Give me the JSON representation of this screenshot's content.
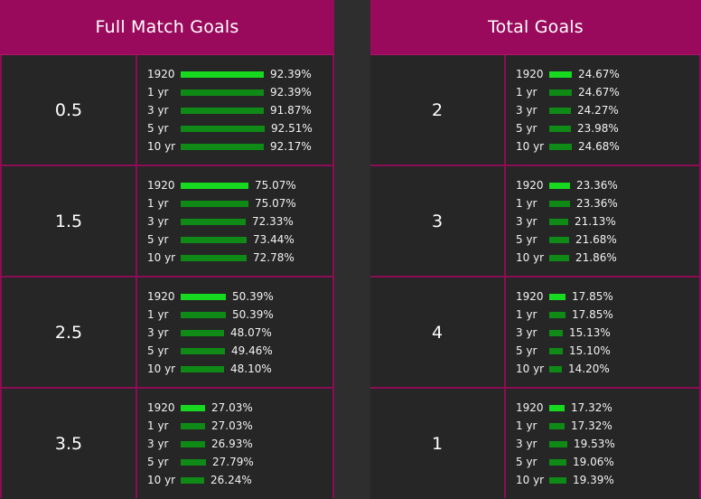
{
  "panels": [
    {
      "title": "Full Match Goals",
      "rows": [
        {
          "label": "0.5",
          "stats": [
            {
              "period": "1920",
              "value": "92.39%",
              "fraction": 0.9239
            },
            {
              "period": "1 yr",
              "value": "92.39%",
              "fraction": 0.9239
            },
            {
              "period": "3 yr",
              "value": "91.87%",
              "fraction": 0.9187
            },
            {
              "period": "5 yr",
              "value": "92.51%",
              "fraction": 0.9251
            },
            {
              "period": "10 yr",
              "value": "92.17%",
              "fraction": 0.9217
            }
          ]
        },
        {
          "label": "1.5",
          "stats": [
            {
              "period": "1920",
              "value": "75.07%",
              "fraction": 0.7507
            },
            {
              "period": "1 yr",
              "value": "75.07%",
              "fraction": 0.7507
            },
            {
              "period": "3 yr",
              "value": "72.33%",
              "fraction": 0.7233
            },
            {
              "period": "5 yr",
              "value": "73.44%",
              "fraction": 0.7344
            },
            {
              "period": "10 yr",
              "value": "72.78%",
              "fraction": 0.7278
            }
          ]
        },
        {
          "label": "2.5",
          "stats": [
            {
              "period": "1920",
              "value": "50.39%",
              "fraction": 0.5039
            },
            {
              "period": "1 yr",
              "value": "50.39%",
              "fraction": 0.5039
            },
            {
              "period": "3 yr",
              "value": "48.07%",
              "fraction": 0.4807
            },
            {
              "period": "5 yr",
              "value": "49.46%",
              "fraction": 0.4946
            },
            {
              "period": "10 yr",
              "value": "48.10%",
              "fraction": 0.481
            }
          ]
        },
        {
          "label": "3.5",
          "stats": [
            {
              "period": "1920",
              "value": "27.03%",
              "fraction": 0.2703
            },
            {
              "period": "1 yr",
              "value": "27.03%",
              "fraction": 0.2703
            },
            {
              "period": "3 yr",
              "value": "26.93%",
              "fraction": 0.2693
            },
            {
              "period": "5 yr",
              "value": "27.79%",
              "fraction": 0.2779
            },
            {
              "period": "10 yr",
              "value": "26.24%",
              "fraction": 0.2624
            }
          ]
        }
      ]
    },
    {
      "title": "Total Goals",
      "rows": [
        {
          "label": "2",
          "stats": [
            {
              "period": "1920",
              "value": "24.67%",
              "fraction": 0.2467
            },
            {
              "period": "1 yr",
              "value": "24.67%",
              "fraction": 0.2467
            },
            {
              "period": "3 yr",
              "value": "24.27%",
              "fraction": 0.2427
            },
            {
              "period": "5 yr",
              "value": "23.98%",
              "fraction": 0.2398
            },
            {
              "period": "10 yr",
              "value": "24.68%",
              "fraction": 0.2468
            }
          ]
        },
        {
          "label": "3",
          "stats": [
            {
              "period": "1920",
              "value": "23.36%",
              "fraction": 0.2336
            },
            {
              "period": "1 yr",
              "value": "23.36%",
              "fraction": 0.2336
            },
            {
              "period": "3 yr",
              "value": "21.13%",
              "fraction": 0.2113
            },
            {
              "period": "5 yr",
              "value": "21.68%",
              "fraction": 0.2168
            },
            {
              "period": "10 yr",
              "value": "21.86%",
              "fraction": 0.2186
            }
          ]
        },
        {
          "label": "4",
          "stats": [
            {
              "period": "1920",
              "value": "17.85%",
              "fraction": 0.1785
            },
            {
              "period": "1 yr",
              "value": "17.85%",
              "fraction": 0.1785
            },
            {
              "period": "3 yr",
              "value": "15.13%",
              "fraction": 0.1513
            },
            {
              "period": "5 yr",
              "value": "15.10%",
              "fraction": 0.151
            },
            {
              "period": "10 yr",
              "value": "14.20%",
              "fraction": 0.142
            }
          ]
        },
        {
          "label": "1",
          "stats": [
            {
              "period": "1920",
              "value": "17.32%",
              "fraction": 0.1732
            },
            {
              "period": "1 yr",
              "value": "17.32%",
              "fraction": 0.1732
            },
            {
              "period": "3 yr",
              "value": "19.53%",
              "fraction": 0.1953
            },
            {
              "period": "5 yr",
              "value": "19.06%",
              "fraction": 0.1906
            },
            {
              "period": "10 yr",
              "value": "19.39%",
              "fraction": 0.1939
            }
          ]
        }
      ]
    }
  ],
  "colors": {
    "header_bg": "#9a0a5c",
    "border": "#8c0c56",
    "bar_highlight": "#17d91f",
    "bar_default": "#0f8a17",
    "background": "#262626"
  }
}
